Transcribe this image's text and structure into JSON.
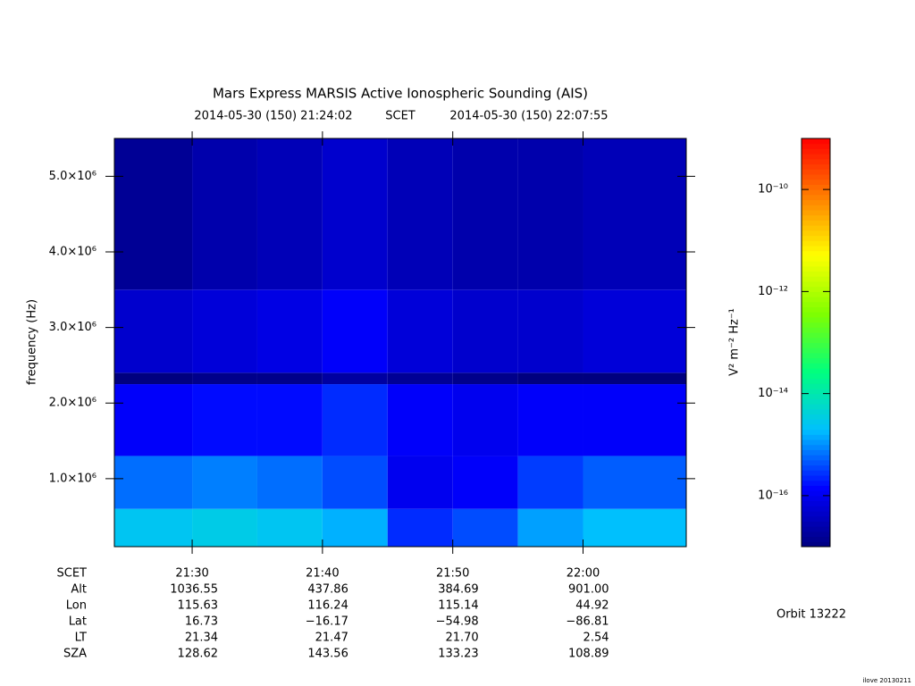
{
  "chart_data": {
    "type": "heatmap",
    "title": "Mars Express MARSIS Active Ionospheric Sounding (AIS)",
    "start_time": "2014-05-30 (150) 21:24:02",
    "time_label": "SCET",
    "end_time": "2014-05-30 (150) 22:07:55",
    "y_label": "frequency (Hz)",
    "xlim": [
      1284.03,
      1327.92
    ],
    "xticks": [
      {
        "value": 1290,
        "label": "21:30"
      },
      {
        "value": 1300,
        "label": "21:40"
      },
      {
        "value": 1310,
        "label": "21:50"
      },
      {
        "value": 1320,
        "label": "22:00"
      }
    ],
    "ylim": [
      100000,
      5500000
    ],
    "yticks": [
      {
        "value": 1000000,
        "label": "1.0×10⁶"
      },
      {
        "value": 2000000,
        "label": "2.0×10⁶"
      },
      {
        "value": 3000000,
        "label": "3.0×10⁶"
      },
      {
        "value": 4000000,
        "label": "4.0×10⁶"
      },
      {
        "value": 5000000,
        "label": "5.0×10⁶"
      }
    ],
    "x_bins": [
      1284.03,
      1290,
      1295,
      1300,
      1305,
      1310,
      1315,
      1320,
      1327.92
    ],
    "y_bins": [
      100000,
      600000,
      1300000,
      2250000,
      2400000,
      3500000,
      5500000
    ],
    "z": [
      [
        -14.6,
        -14.5,
        -14.6,
        -14.8,
        -15.6,
        -15.4,
        -14.9,
        -14.7
      ],
      [
        -15.2,
        -15.1,
        -15.2,
        -15.4,
        -16.0,
        -15.9,
        -15.5,
        -15.3
      ],
      [
        -15.9,
        -15.8,
        -15.8,
        -15.6,
        -15.9,
        -16.0,
        -15.9,
        -15.9
      ],
      [
        -17.0,
        -16.9,
        -16.9,
        -16.7,
        -16.8,
        -16.9,
        -17.0,
        -17.0
      ],
      [
        -16.3,
        -16.2,
        -16.1,
        -15.9,
        -16.2,
        -16.3,
        -16.3,
        -16.2
      ],
      [
        -16.8,
        -16.6,
        -16.5,
        -16.3,
        -16.5,
        -16.6,
        -16.6,
        -16.5
      ]
    ],
    "colorbar_label": "V² m⁻² Hz⁻¹",
    "clim": [
      -17,
      -9
    ],
    "cticks": [
      {
        "value": -10,
        "label": "10⁻¹⁰"
      },
      {
        "value": -12,
        "label": "10⁻¹²"
      },
      {
        "value": -14,
        "label": "10⁻¹⁴"
      },
      {
        "value": -16,
        "label": "10⁻¹⁶"
      }
    ],
    "colormap": [
      "#00007f",
      "#0000ff",
      "#00bfff",
      "#00ff7f",
      "#7fff00",
      "#ffff00",
      "#ff7f00",
      "#ff0000"
    ],
    "ephemeris": {
      "header": "SCET",
      "rows": [
        {
          "label": "Alt",
          "values": [
            "1036.55",
            "437.86",
            "384.69",
            "901.00"
          ]
        },
        {
          "label": "Lon",
          "values": [
            "115.63",
            "116.24",
            "115.14",
            "44.92"
          ]
        },
        {
          "label": "Lat",
          "values": [
            "16.73",
            "−16.17",
            "−54.98",
            "−86.81"
          ]
        },
        {
          "label": "LT",
          "values": [
            "21.34",
            "21.47",
            "21.70",
            "2.54"
          ]
        },
        {
          "label": "SZA",
          "values": [
            "128.62",
            "143.56",
            "133.23",
            "108.89"
          ]
        }
      ]
    },
    "orbit": "Orbit 13222",
    "footer": "ilove 20130211"
  }
}
